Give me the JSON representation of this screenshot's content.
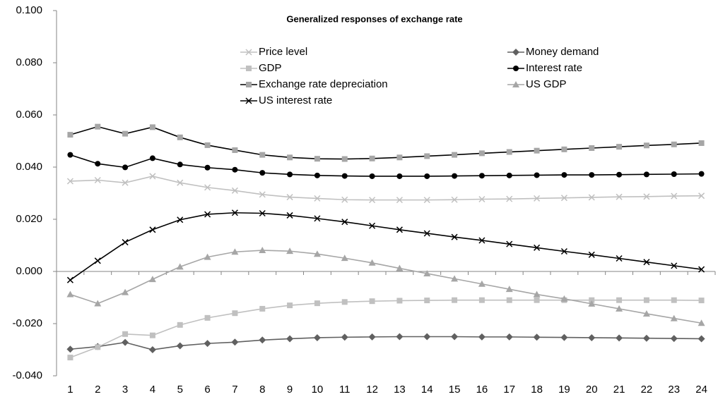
{
  "chart_data": {
    "type": "line",
    "title": "Generalized responses of exchange rate",
    "categories": [
      "1",
      "2",
      "3",
      "4",
      "5",
      "6",
      "7",
      "8",
      "9",
      "10",
      "11",
      "12",
      "13",
      "14",
      "15",
      "16",
      "17",
      "18",
      "19",
      "20",
      "21",
      "22",
      "23",
      "24"
    ],
    "ylim": [
      -0.04,
      0.1
    ],
    "yticks": [
      {
        "value": -0.04,
        "label": "-0.040"
      },
      {
        "value": -0.02,
        "label": "-0.020"
      },
      {
        "value": 0,
        "label": "0.000"
      },
      {
        "value": 0.02,
        "label": "0.020"
      },
      {
        "value": 0.04,
        "label": "0.040"
      },
      {
        "value": 0.06,
        "label": "0.060"
      },
      {
        "value": 0.08,
        "label": "0.080"
      },
      {
        "value": 0.1,
        "label": "0.100"
      }
    ],
    "grid": false,
    "series": [
      {
        "name": "Price level",
        "color": "#c0c0c0",
        "marker": "x",
        "marker_color": "#c0c0c0",
        "values": [
          0.0346,
          0.035,
          0.034,
          0.0365,
          0.034,
          0.0322,
          0.031,
          0.0295,
          0.0285,
          0.028,
          0.0275,
          0.0274,
          0.0274,
          0.0274,
          0.0275,
          0.0277,
          0.0278,
          0.028,
          0.0282,
          0.0284,
          0.0286,
          0.0287,
          0.0289,
          0.029
        ]
      },
      {
        "name": "Money demand",
        "color": "#606060",
        "marker": "diamond",
        "marker_color": "#606060",
        "values": [
          -0.0298,
          -0.0288,
          -0.0272,
          -0.03,
          -0.0285,
          -0.0276,
          -0.0271,
          -0.0263,
          -0.0258,
          -0.0254,
          -0.0252,
          -0.0251,
          -0.025,
          -0.025,
          -0.025,
          -0.0251,
          -0.0251,
          -0.0252,
          -0.0253,
          -0.0254,
          -0.0255,
          -0.0256,
          -0.0257,
          -0.0258
        ]
      },
      {
        "name": "GDP",
        "color": "#c0c0c0",
        "marker": "square",
        "marker_color": "#c0c0c0",
        "values": [
          -0.033,
          -0.029,
          -0.024,
          -0.0245,
          -0.0205,
          -0.0178,
          -0.016,
          -0.0143,
          -0.013,
          -0.0122,
          -0.0117,
          -0.0114,
          -0.0112,
          -0.0111,
          -0.011,
          -0.011,
          -0.011,
          -0.011,
          -0.011,
          -0.011,
          -0.011,
          -0.011,
          -0.011,
          -0.0111
        ]
      },
      {
        "name": "Interest rate",
        "color": "#000000",
        "marker": "circle",
        "marker_color": "#000000",
        "values": [
          0.0447,
          0.0413,
          0.0399,
          0.0434,
          0.041,
          0.0398,
          0.039,
          0.0378,
          0.0372,
          0.0368,
          0.0366,
          0.0365,
          0.0365,
          0.0365,
          0.0366,
          0.0367,
          0.0368,
          0.0369,
          0.037,
          0.037,
          0.0371,
          0.0372,
          0.0373,
          0.0374
        ]
      },
      {
        "name": "Exchange rate depreciation",
        "color": "#000000",
        "marker": "square",
        "marker_color": "#a6a6a6",
        "values": [
          0.0524,
          0.0555,
          0.0528,
          0.0553,
          0.0514,
          0.0484,
          0.0465,
          0.0447,
          0.0437,
          0.0432,
          0.0431,
          0.0433,
          0.0437,
          0.0442,
          0.0447,
          0.0453,
          0.0458,
          0.0463,
          0.0468,
          0.0473,
          0.0478,
          0.0483,
          0.0487,
          0.0492
        ]
      },
      {
        "name": "US GDP",
        "color": "#a6a6a6",
        "marker": "triangle",
        "marker_color": "#a6a6a6",
        "values": [
          -0.0088,
          -0.0123,
          -0.008,
          -0.003,
          0.0018,
          0.0055,
          0.0075,
          0.0081,
          0.0078,
          0.0067,
          0.0051,
          0.0033,
          0.0012,
          -0.0008,
          -0.0028,
          -0.0048,
          -0.0068,
          -0.0088,
          -0.0105,
          -0.0124,
          -0.0143,
          -0.0162,
          -0.018,
          -0.0198
        ]
      },
      {
        "name": "US interest rate",
        "color": "#000000",
        "marker": "x",
        "marker_color": "#000000",
        "values": [
          -0.0033,
          0.0041,
          0.0112,
          0.016,
          0.0198,
          0.0219,
          0.0225,
          0.0223,
          0.0215,
          0.0203,
          0.019,
          0.0175,
          0.016,
          0.0146,
          0.0132,
          0.0119,
          0.0105,
          0.0091,
          0.0077,
          0.0064,
          0.005,
          0.0036,
          0.0022,
          0.0008
        ]
      }
    ]
  }
}
